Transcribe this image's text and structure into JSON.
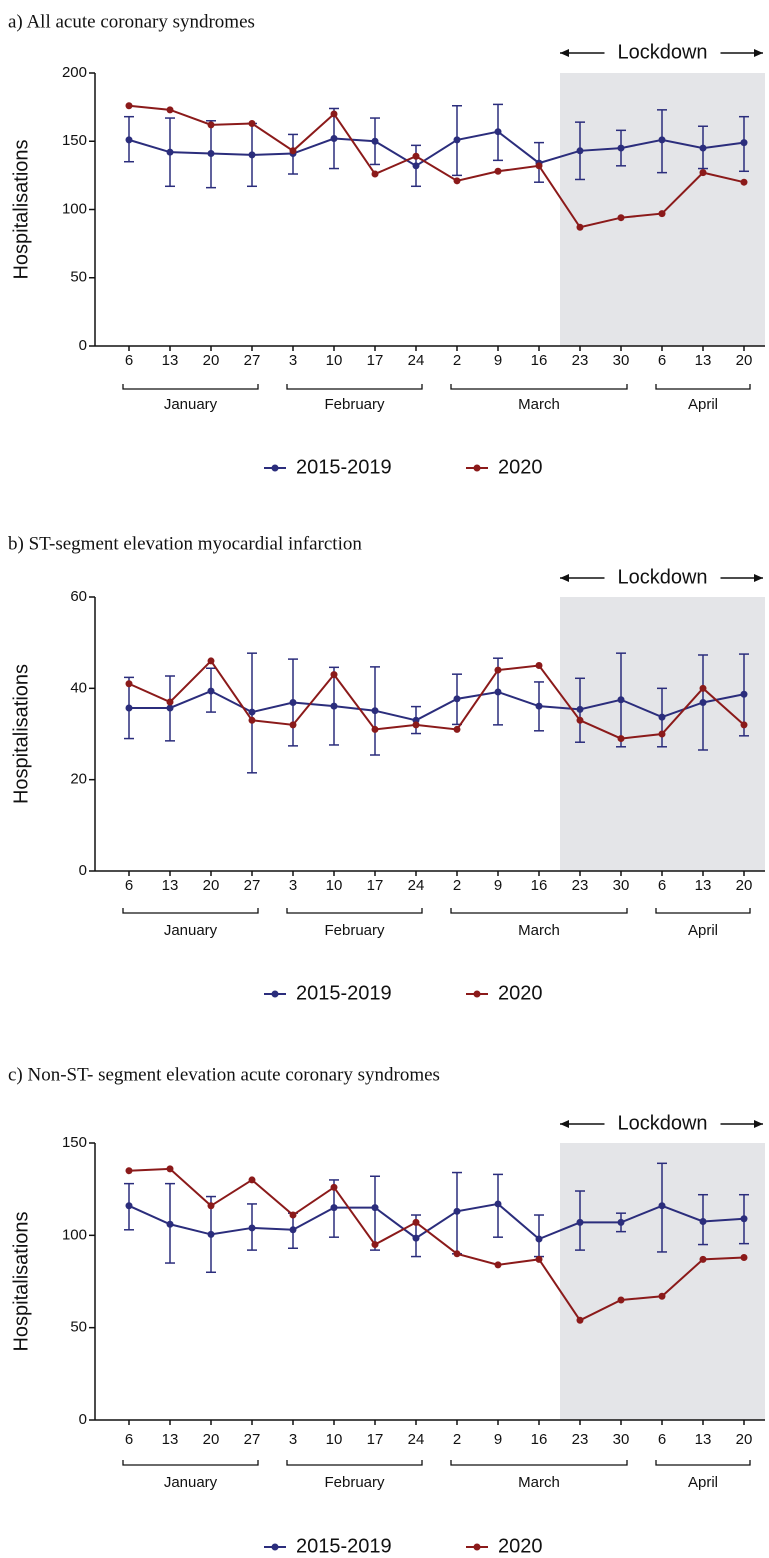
{
  "chart_data": [
    {
      "type": "line",
      "title": "a) All acute coronary syndromes",
      "y_label": "Hospitalisations",
      "categories": [
        "6",
        "13",
        "20",
        "27",
        "3",
        "10",
        "17",
        "24",
        "2",
        "9",
        "16",
        "23",
        "30",
        "6",
        "13",
        "20"
      ],
      "x_groups": [
        {
          "label": "January",
          "span": 4
        },
        {
          "label": "February",
          "span": 4
        },
        {
          "label": "March",
          "span": 5
        },
        {
          "label": "April",
          "span": 3
        }
      ],
      "shade": {
        "label": "Lockdown",
        "from_index": 11
      },
      "ylim": [
        0,
        200
      ],
      "yticks": [
        0,
        50,
        100,
        150,
        200
      ],
      "series": [
        {
          "name": "2015-2019",
          "color": "#2b2d7c",
          "values": [
            151,
            142,
            141,
            140,
            141,
            152,
            150,
            132,
            151,
            157,
            134,
            143,
            145,
            151,
            145,
            149
          ],
          "lower": [
            135,
            117,
            116,
            117,
            126,
            130,
            133,
            117,
            125,
            136,
            120,
            122,
            132,
            127,
            130,
            128
          ],
          "upper": [
            168,
            167,
            165,
            163,
            155,
            174,
            167,
            147,
            176,
            177,
            149,
            164,
            158,
            173,
            161,
            168
          ]
        },
        {
          "name": "2020",
          "color": "#8b1a1a",
          "values": [
            176,
            173,
            162,
            163,
            143,
            170,
            126,
            139,
            121,
            128,
            132,
            87,
            94,
            97,
            127,
            120
          ]
        }
      ]
    },
    {
      "type": "line",
      "title": "b) ST-segment elevation myocardial infarction",
      "y_label": "Hospitalisations",
      "categories": [
        "6",
        "13",
        "20",
        "27",
        "3",
        "10",
        "17",
        "24",
        "2",
        "9",
        "16",
        "23",
        "30",
        "6",
        "13",
        "20"
      ],
      "x_groups": [
        {
          "label": "January",
          "span": 4
        },
        {
          "label": "February",
          "span": 4
        },
        {
          "label": "March",
          "span": 5
        },
        {
          "label": "April",
          "span": 3
        }
      ],
      "shade": {
        "label": "Lockdown",
        "from_index": 11
      },
      "ylim": [
        0,
        60
      ],
      "yticks": [
        0,
        20,
        40,
        60
      ],
      "series": [
        {
          "name": "2015-2019",
          "color": "#2b2d7c",
          "values": [
            35.7,
            35.7,
            39.4,
            34.8,
            36.9,
            36.1,
            35.1,
            33.0,
            37.7,
            39.2,
            36.1,
            35.4,
            37.5,
            33.7,
            36.9,
            38.7
          ],
          "lower": [
            29.0,
            28.5,
            34.8,
            21.5,
            27.4,
            27.6,
            25.4,
            30.1,
            32.1,
            32.0,
            30.7,
            28.2,
            27.2,
            27.2,
            26.5,
            29.6
          ],
          "upper": [
            42.4,
            42.7,
            44.4,
            47.7,
            46.4,
            44.6,
            44.7,
            36.0,
            43.1,
            46.6,
            41.4,
            42.2,
            47.7,
            40.0,
            47.3,
            47.5
          ]
        },
        {
          "name": "2020",
          "color": "#8b1a1a",
          "values": [
            41,
            37,
            46,
            33,
            32,
            43,
            31,
            32,
            31,
            44,
            45,
            33,
            29,
            30,
            40,
            32
          ]
        }
      ]
    },
    {
      "type": "line",
      "title": "c) Non-ST- segment elevation acute coronary syndromes",
      "y_label": "Hospitalisations",
      "categories": [
        "6",
        "13",
        "20",
        "27",
        "3",
        "10",
        "17",
        "24",
        "2",
        "9",
        "16",
        "23",
        "30",
        "6",
        "13",
        "20"
      ],
      "x_groups": [
        {
          "label": "January",
          "span": 4
        },
        {
          "label": "February",
          "span": 4
        },
        {
          "label": "March",
          "span": 5
        },
        {
          "label": "April",
          "span": 3
        }
      ],
      "shade": {
        "label": "Lockdown",
        "from_index": 11
      },
      "ylim": [
        0,
        150
      ],
      "yticks": [
        0,
        50,
        100,
        150
      ],
      "series": [
        {
          "name": "2015-2019",
          "color": "#2b2d7c",
          "values": [
            116,
            106,
            100.5,
            104,
            103,
            115,
            115,
            98.5,
            113,
            117,
            98,
            107,
            107,
            116,
            107.5,
            109
          ],
          "lower": [
            103,
            85,
            80,
            92,
            93,
            99,
            92,
            88.5,
            90,
            99,
            88.5,
            92,
            102,
            91,
            95,
            95.5
          ],
          "upper": [
            128,
            128,
            121,
            117,
            112,
            130,
            132,
            111,
            134,
            133,
            111,
            124,
            112,
            139,
            122,
            122
          ]
        },
        {
          "name": "2020",
          "color": "#8b1a1a",
          "values": [
            135,
            136,
            116,
            130,
            111,
            126,
            95,
            107,
            90,
            84,
            87,
            54,
            65,
            67,
            87,
            88
          ]
        }
      ]
    }
  ]
}
